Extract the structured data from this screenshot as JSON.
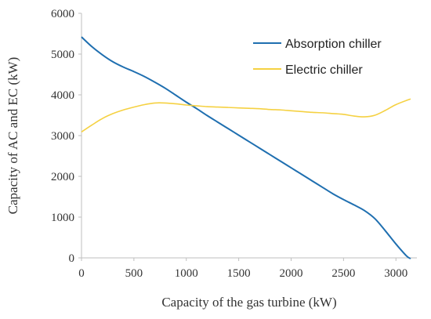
{
  "chart_data": {
    "type": "line",
    "title": "",
    "xlabel": "Capacity  of the gas  turbine  (kW)",
    "ylabel": "Capacity of AC and EC (kW)",
    "xlim": [
      0,
      3200
    ],
    "ylim": [
      0,
      6000
    ],
    "x_ticks": [
      0,
      500,
      1000,
      1500,
      2000,
      2500,
      3000
    ],
    "y_ticks": [
      0,
      1000,
      2000,
      3000,
      4000,
      5000,
      6000
    ],
    "x_tick_labels": [
      "0",
      "500",
      "1000",
      "1500",
      "2000",
      "2500",
      "3000"
    ],
    "y_tick_labels": [
      "0",
      "1000",
      "2000",
      "3000",
      "4000",
      "5000",
      "6000"
    ],
    "grid": false,
    "legend_position": "top-right",
    "series": [
      {
        "name": "Absorption chiller",
        "color": "#1f6fb0",
        "points": [
          [
            0,
            5420
          ],
          [
            100,
            5180
          ],
          [
            200,
            4980
          ],
          [
            300,
            4810
          ],
          [
            400,
            4680
          ],
          [
            500,
            4570
          ],
          [
            600,
            4450
          ],
          [
            700,
            4310
          ],
          [
            800,
            4160
          ],
          [
            900,
            3990
          ],
          [
            1000,
            3820
          ],
          [
            1100,
            3660
          ],
          [
            1200,
            3490
          ],
          [
            1300,
            3330
          ],
          [
            1400,
            3170
          ],
          [
            1500,
            3010
          ],
          [
            1600,
            2850
          ],
          [
            1700,
            2690
          ],
          [
            1800,
            2530
          ],
          [
            1900,
            2370
          ],
          [
            2000,
            2210
          ],
          [
            2100,
            2050
          ],
          [
            2200,
            1890
          ],
          [
            2300,
            1730
          ],
          [
            2400,
            1570
          ],
          [
            2500,
            1430
          ],
          [
            2600,
            1300
          ],
          [
            2700,
            1160
          ],
          [
            2800,
            960
          ],
          [
            2900,
            660
          ],
          [
            3000,
            340
          ],
          [
            3100,
            50
          ],
          [
            3140,
            -20
          ]
        ]
      },
      {
        "name": "Electric chiller",
        "color": "#f5d142",
        "points": [
          [
            0,
            3090
          ],
          [
            100,
            3260
          ],
          [
            200,
            3420
          ],
          [
            300,
            3540
          ],
          [
            400,
            3630
          ],
          [
            500,
            3700
          ],
          [
            600,
            3760
          ],
          [
            700,
            3800
          ],
          [
            800,
            3800
          ],
          [
            900,
            3780
          ],
          [
            1000,
            3750
          ],
          [
            1100,
            3730
          ],
          [
            1200,
            3710
          ],
          [
            1300,
            3700
          ],
          [
            1400,
            3690
          ],
          [
            1500,
            3680
          ],
          [
            1600,
            3670
          ],
          [
            1700,
            3660
          ],
          [
            1800,
            3640
          ],
          [
            1900,
            3630
          ],
          [
            2000,
            3610
          ],
          [
            2100,
            3590
          ],
          [
            2200,
            3570
          ],
          [
            2300,
            3560
          ],
          [
            2400,
            3540
          ],
          [
            2500,
            3520
          ],
          [
            2600,
            3480
          ],
          [
            2700,
            3460
          ],
          [
            2800,
            3500
          ],
          [
            2900,
            3620
          ],
          [
            3000,
            3760
          ],
          [
            3140,
            3900
          ]
        ]
      }
    ]
  }
}
